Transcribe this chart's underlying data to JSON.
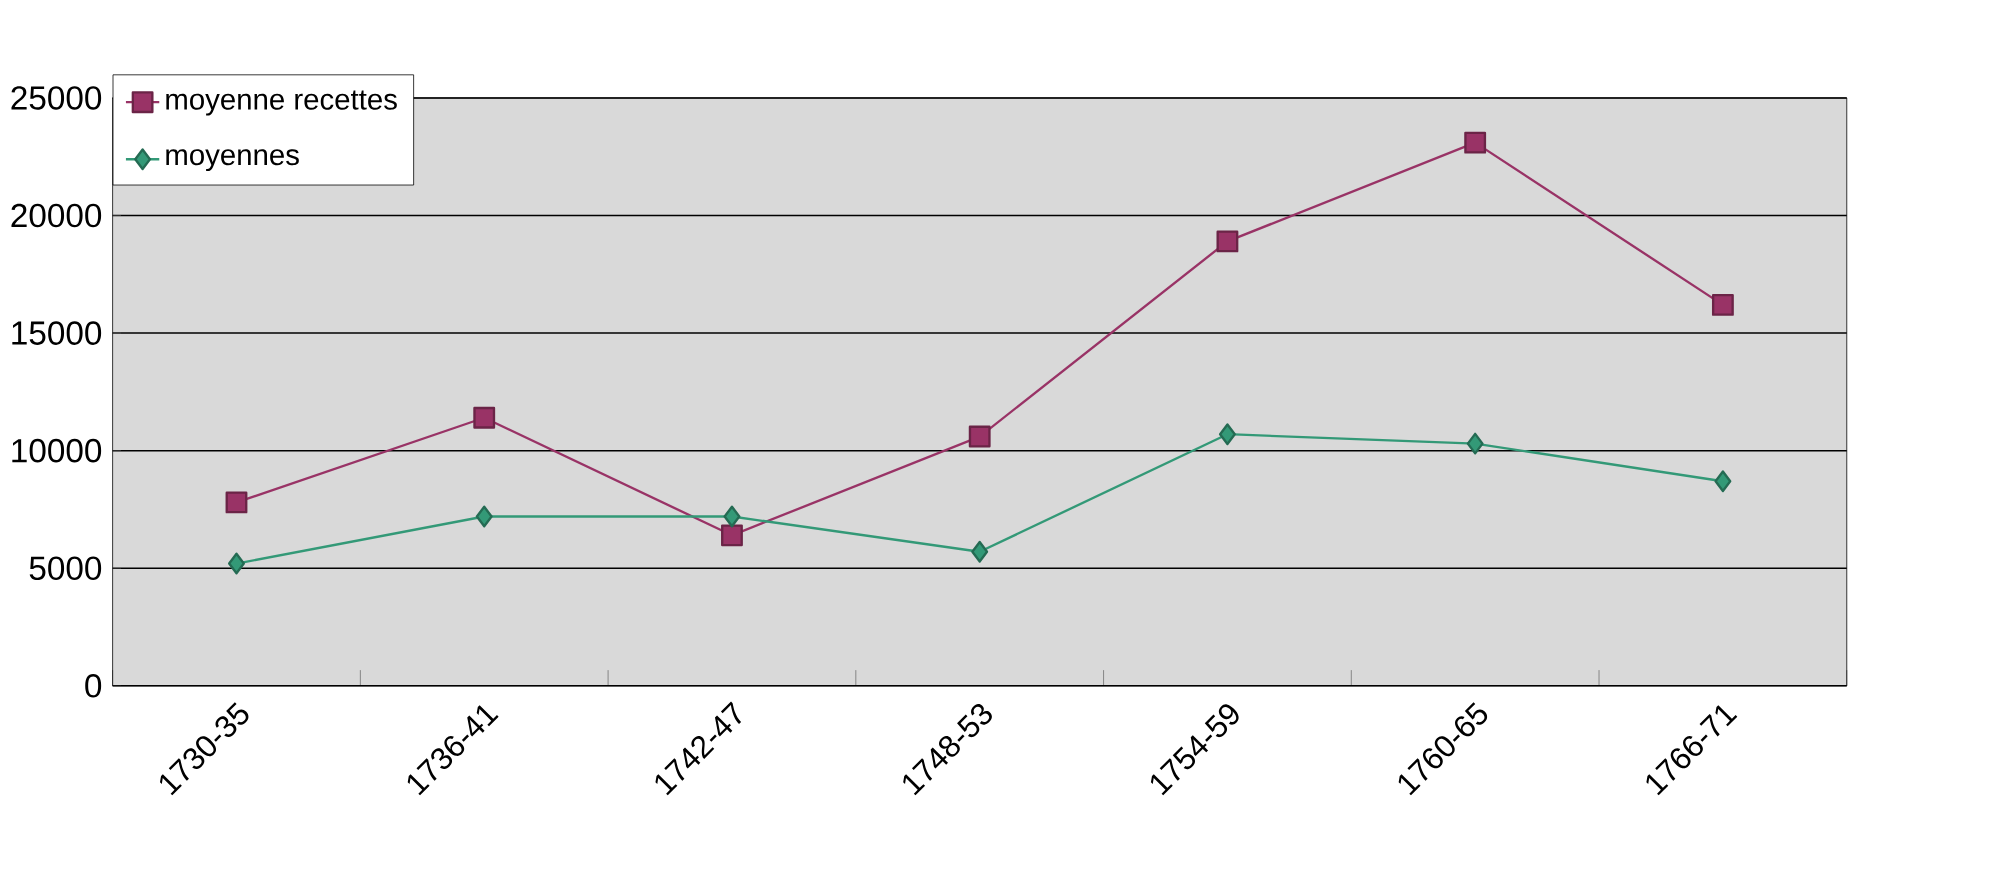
{
  "chart_data": {
    "type": "line",
    "categories": [
      "1730-35",
      "1736-41",
      "1742-47",
      "1748-53",
      "1754-59",
      "1760-65",
      "1766-71"
    ],
    "series": [
      {
        "name": "moyenne recettes",
        "color": "#993366",
        "marker": "square",
        "values": [
          7800,
          11400,
          6400,
          10600,
          18900,
          23100,
          16200
        ]
      },
      {
        "name": "moyennes",
        "color": "#339977",
        "marker": "diamond",
        "values": [
          5200,
          7200,
          7200,
          5700,
          10700,
          10300,
          8700
        ]
      }
    ],
    "ylim": [
      0,
      25000
    ],
    "yticks": [
      0,
      5000,
      10000,
      15000,
      20000,
      25000
    ],
    "grid": "y",
    "legend": "top left",
    "line_style": "solid"
  }
}
